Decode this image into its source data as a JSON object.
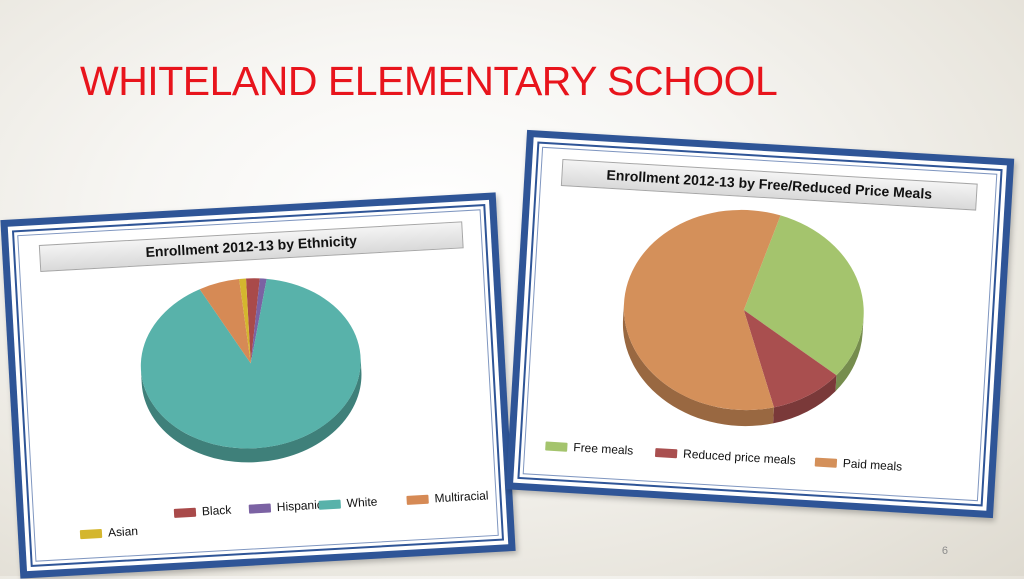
{
  "slide": {
    "title": "WHITELAND ELEMENTARY SCHOOL",
    "page_number": "6"
  },
  "colors": {
    "title": "#e8141c",
    "frame": "#2f5597"
  },
  "chart_data": [
    {
      "type": "pie",
      "title": "Enrollment 2012-13 by Ethnicity",
      "labels": [
        "Black",
        "Hispanic",
        "White",
        "Multiracial",
        "Asian"
      ],
      "values": [
        2,
        1,
        90,
        6,
        1
      ],
      "colors": [
        "#a94a4a",
        "#7b62a3",
        "#58b2aa",
        "#d68a55",
        "#d4b62e"
      ],
      "legend_position": "bottom"
    },
    {
      "type": "pie",
      "title": "Enrollment 2012-13 by Free/Reduced Price Meals",
      "labels": [
        "Free meals",
        "Reduced price meals",
        "Paid meals"
      ],
      "values": [
        31,
        10,
        59
      ],
      "colors": [
        "#a4c46d",
        "#a94f4f",
        "#d4905a"
      ],
      "legend_position": "bottom"
    }
  ]
}
